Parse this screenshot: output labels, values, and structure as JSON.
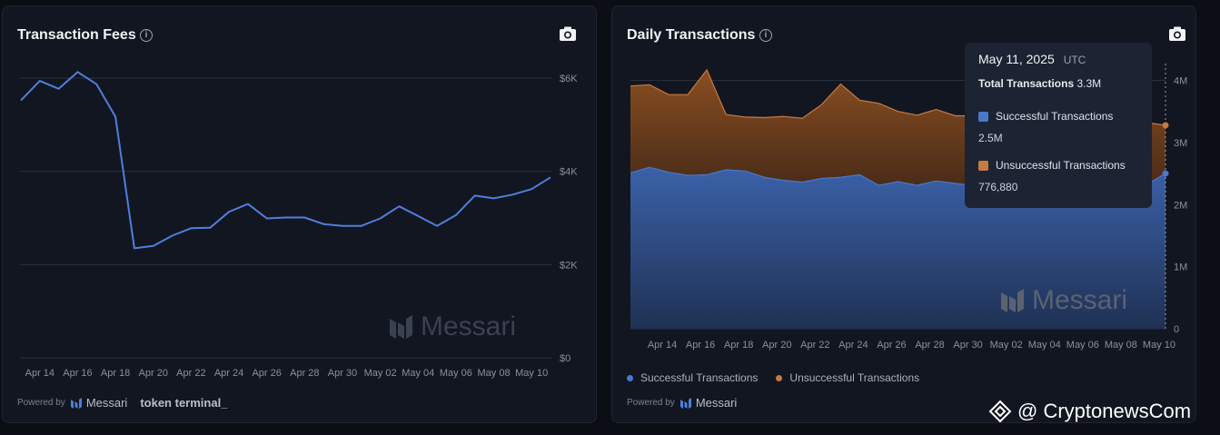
{
  "fees_card": {
    "title": "Transaction Fees",
    "powered_by": "Powered by",
    "brand": "Messari",
    "partner": "token terminal_"
  },
  "tx_card": {
    "title": "Daily Transactions",
    "powered_by": "Powered by",
    "brand": "Messari"
  },
  "watermark_brand": "Messari",
  "footer_watermark": "@ CryptonewsCom",
  "colors": {
    "line": "#4f7fdc",
    "success": "#4a78cc",
    "unsuccessful": "#c97a40",
    "grid": "#2a303c"
  },
  "tooltip": {
    "date": "May 11, 2025",
    "tz": "UTC",
    "total_label": "Total Transactions",
    "total_value": "3.3M",
    "s_label": "Successful Transactions",
    "s_value": "2.5M",
    "u_label": "Unsuccessful Transactions",
    "u_value": "776,880"
  },
  "chart_data": [
    {
      "type": "line",
      "title": "Transaction Fees",
      "x_tick_labels": [
        "Apr 14",
        "Apr 16",
        "Apr 18",
        "Apr 20",
        "Apr 22",
        "Apr 24",
        "Apr 26",
        "Apr 28",
        "Apr 30",
        "May 02",
        "May 04",
        "May 06",
        "May 08",
        "May 10"
      ],
      "y_tick_labels": [
        "$0",
        "$2K",
        "$4K",
        "$6K"
      ],
      "ylim": [
        0,
        6000
      ],
      "x": [
        "Apr 13",
        "Apr 14",
        "Apr 15",
        "Apr 16",
        "Apr 17",
        "Apr 18",
        "Apr 19",
        "Apr 20",
        "Apr 21",
        "Apr 22",
        "Apr 23",
        "Apr 24",
        "Apr 25",
        "Apr 26",
        "Apr 27",
        "Apr 28",
        "Apr 29",
        "Apr 30",
        "May 01",
        "May 02",
        "May 03",
        "May 04",
        "May 05",
        "May 06",
        "May 07",
        "May 08",
        "May 09",
        "May 10",
        "May 11"
      ],
      "series": [
        {
          "values": [
            5520,
            5940,
            5770,
            6130,
            5870,
            5170,
            2350,
            2400,
            2620,
            2780,
            2790,
            3130,
            3300,
            2990,
            3010,
            3010,
            2870,
            2830,
            2830,
            2990,
            3250,
            3040,
            2830,
            3060,
            3480,
            3420,
            3500,
            3620,
            3870
          ]
        }
      ]
    },
    {
      "type": "area",
      "stacked": true,
      "title": "Daily Transactions",
      "x_tick_labels": [
        "Apr 14",
        "Apr 16",
        "Apr 18",
        "Apr 20",
        "Apr 22",
        "Apr 24",
        "Apr 26",
        "Apr 28",
        "Apr 30",
        "May 02",
        "May 04",
        "May 06",
        "May 08",
        "May 10"
      ],
      "y_tick_labels": [
        "0",
        "1M",
        "2M",
        "3M",
        "4M"
      ],
      "ylim": [
        0,
        4300000
      ],
      "x": [
        "Apr 13",
        "Apr 14",
        "Apr 15",
        "Apr 16",
        "Apr 17",
        "Apr 18",
        "Apr 19",
        "Apr 20",
        "Apr 21",
        "Apr 22",
        "Apr 23",
        "Apr 24",
        "Apr 25",
        "Apr 26",
        "Apr 27",
        "Apr 28",
        "Apr 29",
        "Apr 30",
        "May 01",
        "May 02",
        "May 03",
        "May 04",
        "May 05",
        "May 06",
        "May 07",
        "May 08",
        "May 09",
        "May 10",
        "May 11"
      ],
      "legend": "bottom-left",
      "series": [
        {
          "name": "Successful Transactions",
          "values": [
            2510000,
            2600000,
            2520000,
            2470000,
            2480000,
            2560000,
            2540000,
            2440000,
            2390000,
            2360000,
            2420000,
            2440000,
            2480000,
            2310000,
            2370000,
            2310000,
            2380000,
            2340000,
            2300000,
            2330000,
            2350000,
            2320000,
            2340000,
            2300000,
            2330000,
            2310000,
            2350000,
            2320000,
            2500000
          ]
        },
        {
          "name": "Unsuccessful Transactions",
          "values": [
            1400000,
            1330000,
            1250000,
            1300000,
            1690000,
            890000,
            870000,
            960000,
            1030000,
            1030000,
            1190000,
            1500000,
            1200000,
            1320000,
            1130000,
            1130000,
            1150000,
            1090000,
            1130000,
            1130000,
            1100000,
            1080000,
            1050000,
            1070000,
            1040000,
            1050000,
            1000000,
            1000000,
            776880
          ]
        }
      ]
    }
  ]
}
